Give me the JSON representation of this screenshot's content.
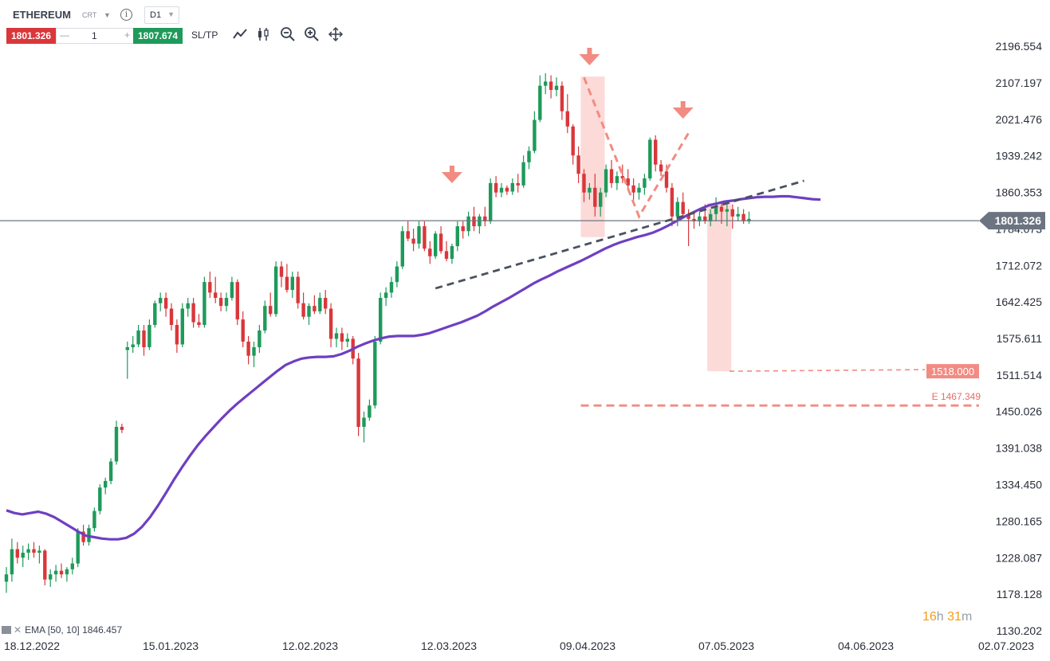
{
  "symbol": "ETHEREUM",
  "instrument_type": "CRT",
  "timeframe": "D1",
  "info_icon": "info-icon",
  "trade": {
    "sell_price": "1801.326",
    "buy_price": "1807.674",
    "quantity": "1",
    "minus": "—",
    "plus": "+",
    "sltp_label": "SL/TP"
  },
  "tools": [
    "line-chart-icon",
    "candlestick-icon",
    "zoom-out-icon",
    "zoom-in-icon",
    "crosshair-move-icon"
  ],
  "ema_legend": "EMA [50, 10] 1846.457",
  "timer": {
    "hours": "16",
    "h": "h",
    "minutes": "31",
    "m": "m"
  },
  "colors": {
    "up": "#1e9a5a",
    "down": "#d9373b",
    "ema": "#6f3fc1",
    "price_line": "#6b7480",
    "annotation": "#f28b82",
    "zone": "#fcd3d1",
    "trendline": "#4a5160"
  },
  "chart_data": {
    "type": "candlestick",
    "title": "",
    "y_ticks": [
      "2196.554",
      "2107.197",
      "2021.476",
      "1939.242",
      "1860.353",
      "1784.073",
      "1712.072",
      "1642.425",
      "1575.611",
      "1511.514",
      "1450.026",
      "1391.038",
      "1334.450",
      "1280.165",
      "1228.087",
      "1178.128",
      "1130.202"
    ],
    "x_ticks": [
      "18.12.2022",
      "15.01.2023",
      "12.02.2023",
      "12.03.2023",
      "09.04.2023",
      "07.05.2023",
      "04.06.2023",
      "02.07.2023"
    ],
    "current_price": 1801.326,
    "current_price_label": "1801.326",
    "target_label": "1518.000",
    "target_value": 1518.0,
    "extension_label": "E 1467.349",
    "extension_value": 1467.349,
    "ema": {
      "period": 50,
      "shift": 10,
      "last": 1846.457
    },
    "candles": [
      [
        1195,
        1215,
        1180,
        1205
      ],
      [
        1205,
        1255,
        1195,
        1240
      ],
      [
        1240,
        1250,
        1220,
        1228
      ],
      [
        1228,
        1245,
        1215,
        1235
      ],
      [
        1235,
        1248,
        1225,
        1240
      ],
      [
        1240,
        1250,
        1228,
        1235
      ],
      [
        1235,
        1245,
        1220,
        1238
      ],
      [
        1238,
        1240,
        1190,
        1198
      ],
      [
        1198,
        1212,
        1188,
        1205
      ],
      [
        1205,
        1218,
        1195,
        1210
      ],
      [
        1210,
        1220,
        1200,
        1205
      ],
      [
        1205,
        1215,
        1195,
        1212
      ],
      [
        1212,
        1228,
        1205,
        1220
      ],
      [
        1220,
        1270,
        1215,
        1265
      ],
      [
        1265,
        1275,
        1245,
        1250
      ],
      [
        1250,
        1275,
        1245,
        1270
      ],
      [
        1270,
        1300,
        1265,
        1295
      ],
      [
        1295,
        1335,
        1290,
        1330
      ],
      [
        1330,
        1345,
        1320,
        1340
      ],
      [
        1340,
        1375,
        1335,
        1370
      ],
      [
        1370,
        1435,
        1365,
        1425
      ],
      [
        1425,
        1430,
        1415,
        1420
      ],
      [
        1555,
        1570,
        1505,
        1560
      ],
      [
        1560,
        1580,
        1550,
        1565
      ],
      [
        1565,
        1600,
        1560,
        1590
      ],
      [
        1590,
        1600,
        1545,
        1560
      ],
      [
        1560,
        1610,
        1555,
        1600
      ],
      [
        1600,
        1645,
        1595,
        1640
      ],
      [
        1640,
        1660,
        1625,
        1650
      ],
      [
        1650,
        1660,
        1615,
        1630
      ],
      [
        1630,
        1640,
        1590,
        1600
      ],
      [
        1600,
        1610,
        1550,
        1565
      ],
      [
        1565,
        1640,
        1560,
        1630
      ],
      [
        1630,
        1650,
        1615,
        1640
      ],
      [
        1640,
        1650,
        1595,
        1605
      ],
      [
        1605,
        1620,
        1595,
        1600
      ],
      [
        1600,
        1690,
        1595,
        1680
      ],
      [
        1680,
        1700,
        1650,
        1660
      ],
      [
        1660,
        1690,
        1640,
        1650
      ],
      [
        1650,
        1660,
        1625,
        1635
      ],
      [
        1635,
        1660,
        1625,
        1650
      ],
      [
        1650,
        1690,
        1645,
        1680
      ],
      [
        1680,
        1685,
        1600,
        1610
      ],
      [
        1610,
        1625,
        1560,
        1570
      ],
      [
        1570,
        1580,
        1530,
        1545
      ],
      [
        1545,
        1570,
        1525,
        1560
      ],
      [
        1560,
        1600,
        1550,
        1590
      ],
      [
        1590,
        1645,
        1585,
        1635
      ],
      [
        1635,
        1660,
        1615,
        1620
      ],
      [
        1620,
        1720,
        1615,
        1710
      ],
      [
        1710,
        1720,
        1670,
        1690
      ],
      [
        1690,
        1715,
        1660,
        1665
      ],
      [
        1665,
        1700,
        1650,
        1690
      ],
      [
        1690,
        1700,
        1630,
        1640
      ],
      [
        1640,
        1660,
        1610,
        1615
      ],
      [
        1615,
        1640,
        1600,
        1635
      ],
      [
        1635,
        1655,
        1620,
        1625
      ],
      [
        1625,
        1660,
        1620,
        1650
      ],
      [
        1650,
        1665,
        1620,
        1630
      ],
      [
        1630,
        1640,
        1560,
        1575
      ],
      [
        1575,
        1595,
        1560,
        1585
      ],
      [
        1585,
        1595,
        1555,
        1570
      ],
      [
        1570,
        1585,
        1560,
        1575
      ],
      [
        1575,
        1580,
        1530,
        1540
      ],
      [
        1540,
        1550,
        1410,
        1425
      ],
      [
        1425,
        1450,
        1400,
        1440
      ],
      [
        1440,
        1470,
        1435,
        1460
      ],
      [
        1460,
        1580,
        1455,
        1570
      ],
      [
        1570,
        1660,
        1565,
        1650
      ],
      [
        1650,
        1670,
        1635,
        1660
      ],
      [
        1660,
        1690,
        1650,
        1680
      ],
      [
        1680,
        1720,
        1670,
        1710
      ],
      [
        1710,
        1790,
        1705,
        1780
      ],
      [
        1780,
        1800,
        1760,
        1765
      ],
      [
        1765,
        1785,
        1740,
        1755
      ],
      [
        1755,
        1800,
        1745,
        1790
      ],
      [
        1790,
        1800,
        1740,
        1745
      ],
      [
        1745,
        1760,
        1715,
        1730
      ],
      [
        1730,
        1780,
        1725,
        1775
      ],
      [
        1775,
        1790,
        1735,
        1740
      ],
      [
        1740,
        1760,
        1720,
        1725
      ],
      [
        1725,
        1755,
        1715,
        1750
      ],
      [
        1750,
        1800,
        1740,
        1790
      ],
      [
        1790,
        1800,
        1765,
        1780
      ],
      [
        1780,
        1820,
        1770,
        1810
      ],
      [
        1810,
        1830,
        1780,
        1790
      ],
      [
        1790,
        1815,
        1775,
        1810
      ],
      [
        1810,
        1830,
        1790,
        1800
      ],
      [
        1800,
        1890,
        1795,
        1880
      ],
      [
        1880,
        1895,
        1850,
        1860
      ],
      [
        1860,
        1880,
        1850,
        1870
      ],
      [
        1870,
        1875,
        1855,
        1862
      ],
      [
        1862,
        1890,
        1855,
        1880
      ],
      [
        1880,
        1900,
        1860,
        1875
      ],
      [
        1875,
        1940,
        1870,
        1925
      ],
      [
        1925,
        1960,
        1910,
        1950
      ],
      [
        1950,
        2040,
        1945,
        2020
      ],
      [
        2020,
        2125,
        2015,
        2100
      ],
      [
        2100,
        2130,
        2080,
        2110
      ],
      [
        2110,
        2125,
        2070,
        2090
      ],
      [
        2090,
        2120,
        2075,
        2100
      ],
      [
        2100,
        2110,
        2020,
        2040
      ],
      [
        2040,
        2080,
        1990,
        2005
      ],
      [
        2005,
        2010,
        1920,
        1940
      ],
      [
        1940,
        1960,
        1880,
        1900
      ],
      [
        1900,
        1910,
        1840,
        1860
      ],
      [
        1860,
        1880,
        1845,
        1870
      ],
      [
        1870,
        1900,
        1810,
        1830
      ],
      [
        1830,
        1870,
        1810,
        1860
      ],
      [
        1860,
        1920,
        1850,
        1910
      ],
      [
        1910,
        1930,
        1870,
        1880
      ],
      [
        1880,
        1905,
        1865,
        1895
      ],
      [
        1895,
        1920,
        1880,
        1890
      ],
      [
        1890,
        1910,
        1865,
        1875
      ],
      [
        1875,
        1890,
        1840,
        1860
      ],
      [
        1860,
        1880,
        1845,
        1870
      ],
      [
        1870,
        1900,
        1855,
        1890
      ],
      [
        1890,
        1980,
        1885,
        1975
      ],
      [
        1975,
        1985,
        1905,
        1920
      ],
      [
        1920,
        1930,
        1895,
        1905
      ],
      [
        1905,
        1920,
        1860,
        1870
      ],
      [
        1870,
        1880,
        1790,
        1810
      ],
      [
        1810,
        1850,
        1790,
        1840
      ],
      [
        1840,
        1860,
        1810,
        1815
      ],
      [
        1815,
        1825,
        1750,
        1805
      ],
      [
        1805,
        1815,
        1785,
        1800
      ],
      [
        1800,
        1820,
        1790,
        1810
      ],
      [
        1810,
        1835,
        1795,
        1800
      ],
      [
        1800,
        1825,
        1790,
        1815
      ],
      [
        1815,
        1850,
        1800,
        1830
      ],
      [
        1830,
        1840,
        1795,
        1820
      ],
      [
        1820,
        1835,
        1790,
        1825
      ],
      [
        1825,
        1835,
        1785,
        1810
      ],
      [
        1810,
        1830,
        1800,
        1815
      ],
      [
        1815,
        1825,
        1795,
        1800
      ],
      [
        1800,
        1820,
        1795,
        1805
      ]
    ],
    "ema_series": [
      1296,
      1292,
      1290,
      1292,
      1294,
      1291,
      1286,
      1279,
      1272,
      1265,
      1259,
      1257,
      1255,
      1254,
      1254,
      1256,
      1262,
      1272,
      1286,
      1303,
      1322,
      1342,
      1361,
      1379,
      1396,
      1411,
      1425,
      1439,
      1452,
      1464,
      1475,
      1486,
      1497,
      1508,
      1519,
      1529,
      1535,
      1540,
      1542,
      1543,
      1543,
      1544,
      1548,
      1554,
      1561,
      1567,
      1572,
      1576,
      1579,
      1580,
      1580,
      1580,
      1582,
      1585,
      1590,
      1595,
      1600,
      1605,
      1611,
      1617,
      1625,
      1634,
      1642,
      1650,
      1659,
      1668,
      1677,
      1685,
      1692,
      1700,
      1707,
      1714,
      1721,
      1729,
      1737,
      1745,
      1752,
      1758,
      1763,
      1768,
      1772,
      1777,
      1784,
      1792,
      1801,
      1810,
      1818,
      1826,
      1833,
      1837,
      1841,
      1843,
      1846,
      1848,
      1850,
      1851,
      1851,
      1852,
      1852,
      1850,
      1848,
      1846,
      1845
    ]
  }
}
